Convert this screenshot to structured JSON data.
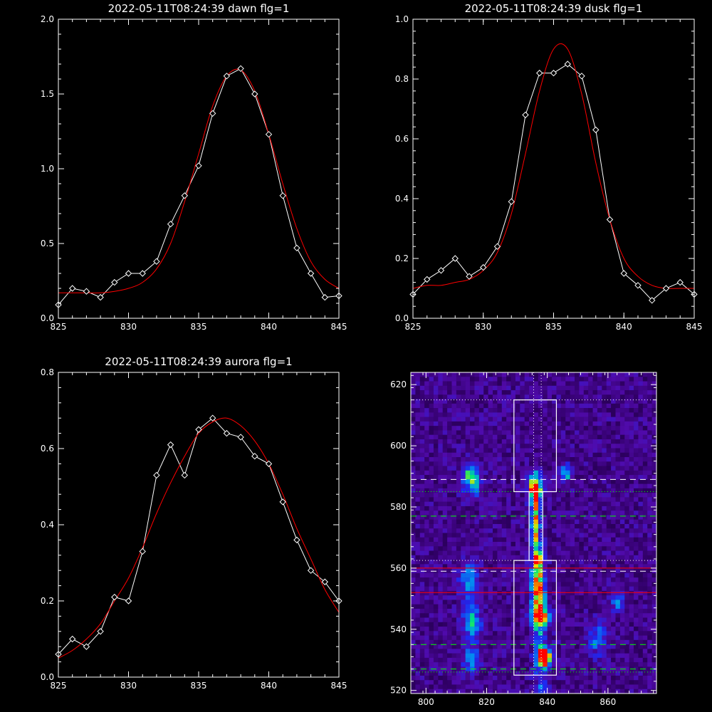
{
  "colors": {
    "background": "#000000",
    "axes": "#ffffff",
    "observed": "#ffffff",
    "fit": "#ff0000",
    "green_line": "#00ff00",
    "red_line": "#ff0000",
    "box": "#ffffff"
  },
  "chart_data": [
    {
      "type": "line",
      "title": "2022-05-11T08:24:39 dawn flg=1",
      "xlim": [
        825,
        845
      ],
      "ylim": [
        0,
        2.0
      ],
      "xticks": [
        "825",
        "830",
        "835",
        "840",
        "845"
      ],
      "yticks": [
        "0.0",
        "0.5",
        "1.0",
        "1.5",
        "2.0"
      ],
      "series": [
        {
          "marker": "diamond",
          "x": [
            825,
            826,
            827,
            828,
            829,
            830,
            831,
            832,
            833,
            834,
            835,
            836,
            837,
            838,
            839,
            840,
            841,
            842,
            843,
            844,
            845
          ],
          "values": [
            0.09,
            0.2,
            0.18,
            0.14,
            0.24,
            0.3,
            0.3,
            0.38,
            0.63,
            0.82,
            1.02,
            1.37,
            1.62,
            1.67,
            1.5,
            1.23,
            0.82,
            0.47,
            0.3,
            0.14,
            0.15
          ]
        },
        {
          "x": [
            825,
            826,
            827,
            828,
            829,
            830,
            831,
            832,
            833,
            834,
            835,
            836,
            837,
            838,
            839,
            840,
            841,
            842,
            843,
            844,
            845
          ],
          "values": [
            0.17,
            0.17,
            0.17,
            0.17,
            0.18,
            0.2,
            0.24,
            0.33,
            0.5,
            0.78,
            1.1,
            1.42,
            1.62,
            1.66,
            1.52,
            1.23,
            0.9,
            0.6,
            0.38,
            0.26,
            0.2
          ]
        }
      ]
    },
    {
      "type": "line",
      "title": "2022-05-11T08:24:39 dusk flg=1",
      "xlim": [
        825,
        845
      ],
      "ylim": [
        0,
        1.0
      ],
      "xticks": [
        "825",
        "830",
        "835",
        "840",
        "845"
      ],
      "yticks": [
        "0.0",
        "0.2",
        "0.4",
        "0.6",
        "0.8",
        "1.0"
      ],
      "series": [
        {
          "marker": "diamond",
          "x": [
            825,
            826,
            827,
            828,
            829,
            830,
            831,
            832,
            833,
            834,
            835,
            836,
            837,
            838,
            839,
            840,
            841,
            842,
            843,
            844,
            845
          ],
          "values": [
            0.08,
            0.13,
            0.16,
            0.2,
            0.14,
            0.17,
            0.24,
            0.39,
            0.68,
            0.82,
            0.82,
            0.85,
            0.81,
            0.63,
            0.33,
            0.15,
            0.11,
            0.06,
            0.1,
            0.12,
            0.08
          ]
        },
        {
          "x": [
            825,
            826,
            827,
            828,
            829,
            830,
            831,
            832,
            833,
            834,
            835,
            836,
            837,
            838,
            839,
            840,
            841,
            842,
            843,
            844,
            845
          ],
          "values": [
            0.1,
            0.11,
            0.11,
            0.12,
            0.13,
            0.16,
            0.22,
            0.35,
            0.55,
            0.76,
            0.9,
            0.9,
            0.75,
            0.52,
            0.33,
            0.2,
            0.14,
            0.11,
            0.1,
            0.1,
            0.1
          ]
        }
      ]
    },
    {
      "type": "line",
      "title": "2022-05-11T08:24:39 aurora flg=1",
      "xlim": [
        825,
        845
      ],
      "ylim": [
        0,
        0.8
      ],
      "xticks": [
        "825",
        "830",
        "835",
        "840",
        "845"
      ],
      "yticks": [
        "0.0",
        "0.2",
        "0.4",
        "0.6",
        "0.8"
      ],
      "series": [
        {
          "marker": "diamond",
          "x": [
            825,
            826,
            827,
            828,
            829,
            830,
            831,
            832,
            833,
            834,
            835,
            836,
            837,
            838,
            839,
            840,
            841,
            842,
            843,
            844,
            845
          ],
          "values": [
            0.06,
            0.1,
            0.08,
            0.12,
            0.21,
            0.2,
            0.33,
            0.53,
            0.61,
            0.53,
            0.65,
            0.68,
            0.64,
            0.63,
            0.58,
            0.56,
            0.46,
            0.36,
            0.28,
            0.25,
            0.2
          ]
        },
        {
          "x": [
            825,
            826,
            827,
            828,
            829,
            830,
            831,
            832,
            833,
            834,
            835,
            836,
            837,
            838,
            839,
            840,
            841,
            842,
            843,
            844,
            845
          ],
          "values": [
            0.05,
            0.07,
            0.1,
            0.14,
            0.2,
            0.26,
            0.34,
            0.43,
            0.51,
            0.58,
            0.64,
            0.67,
            0.68,
            0.66,
            0.62,
            0.56,
            0.48,
            0.39,
            0.31,
            0.23,
            0.17
          ]
        }
      ]
    },
    {
      "type": "heatmap",
      "title": "",
      "xlim": [
        795,
        876
      ],
      "ylim": [
        519,
        624
      ],
      "xticks": [
        "800",
        "820",
        "840",
        "860"
      ],
      "yticks": [
        "520",
        "540",
        "560",
        "580",
        "600",
        "620"
      ],
      "hotspots": [
        {
          "x": 836,
          "y": 586,
          "w": 2,
          "h": 3,
          "v": 0.8
        },
        {
          "x": 836,
          "y": 575,
          "w": 1.2,
          "h": 12,
          "v": 0.45
        },
        {
          "x": 837,
          "y": 563,
          "w": 1.5,
          "h": 2,
          "v": 0.55
        },
        {
          "x": 837,
          "y": 552,
          "w": 2.5,
          "h": 8,
          "v": 0.55
        },
        {
          "x": 838,
          "y": 544,
          "w": 3,
          "h": 3,
          "v": 0.65
        },
        {
          "x": 839,
          "y": 531,
          "w": 2.5,
          "h": 3,
          "v": 1.0
        },
        {
          "x": 815,
          "y": 589,
          "w": 3,
          "h": 5,
          "v": 0.55
        },
        {
          "x": 814,
          "y": 556,
          "w": 3,
          "h": 6,
          "v": 0.4
        },
        {
          "x": 815,
          "y": 542,
          "w": 3,
          "h": 6,
          "v": 0.45
        },
        {
          "x": 815,
          "y": 530,
          "w": 2.5,
          "h": 4,
          "v": 0.45
        },
        {
          "x": 846,
          "y": 591,
          "w": 2,
          "h": 3,
          "v": 0.4
        },
        {
          "x": 863,
          "y": 549,
          "w": 2,
          "h": 3,
          "v": 0.35
        },
        {
          "x": 857,
          "y": 537,
          "w": 3,
          "h": 6,
          "v": 0.3
        }
      ],
      "vlines_dotted_x": [
        835.5,
        838
      ],
      "hlines_dotted_white_y": [
        615,
        562.5
      ],
      "hlines_dotted_green_y": [
        585,
        526
      ],
      "hlines_dashed_white_y": [
        589,
        559
      ],
      "hlines_dashed_green_y": [
        577,
        535,
        527
      ],
      "hlines_red_y": [
        560,
        552
      ],
      "boxes": [
        {
          "x0": 829,
          "x1": 843,
          "y0": 585,
          "y1": 615
        },
        {
          "x0": 829,
          "x1": 843,
          "y0": 525,
          "y1": 562.5
        },
        {
          "x0": 834,
          "x1": 838.5,
          "y0": 562.5,
          "y1": 585
        }
      ]
    }
  ]
}
